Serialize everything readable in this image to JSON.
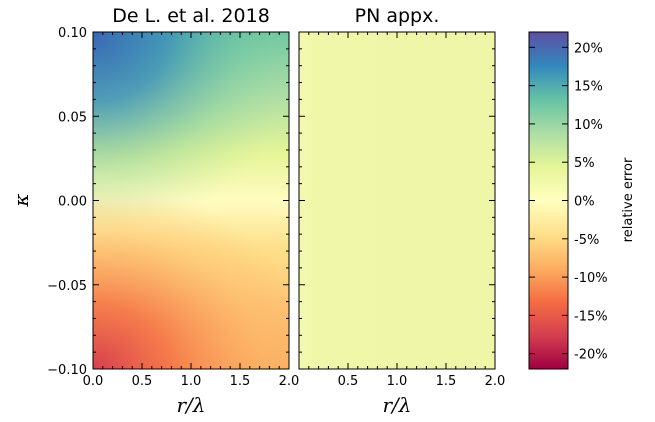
{
  "chart_data": [
    {
      "type": "heatmap",
      "title": "De L. et al. 2018",
      "xlabel": "r/λ",
      "ylabel": "κ",
      "xlim": [
        0.0,
        2.0
      ],
      "ylim": [
        -0.1,
        0.1
      ],
      "x_ticks": [
        "0.0",
        "0.5",
        "1.0",
        "1.5",
        "2.0"
      ],
      "y_ticks": [
        "0.10",
        "0.05",
        "0.00",
        "−0.05",
        "−0.10"
      ],
      "value_description": "relative error",
      "corner_values_percent": {
        "x0_ytop": 22,
        "x2_ytop": 5,
        "x0_ymid": 0,
        "x2_ymid": 0,
        "x0_ybottom": -20,
        "x2_ybottom": -4
      }
    },
    {
      "type": "heatmap",
      "title": "PN appx.",
      "xlabel": "r/λ",
      "ylabel": "",
      "xlim": [
        0.0,
        2.0
      ],
      "ylim": [
        -0.1,
        0.1
      ],
      "x_ticks": [
        "0.5",
        "1.0",
        "1.5",
        "2.0"
      ],
      "uniform_value_percent": 3
    }
  ],
  "colorbar": {
    "label": "relative error",
    "range_percent": [
      -22,
      22
    ],
    "ticks": [
      "20%",
      "15%",
      "10%",
      "5%",
      "0%",
      "-5%",
      "-10%",
      "-15%",
      "-20%"
    ],
    "colormap": "Spectral",
    "stops": [
      "#5e4fa2",
      "#3288bd",
      "#66c2a5",
      "#abdda4",
      "#e6f598",
      "#ffffbf",
      "#fee08b",
      "#fdae61",
      "#f46d43",
      "#d53e4f",
      "#9e0142"
    ]
  }
}
